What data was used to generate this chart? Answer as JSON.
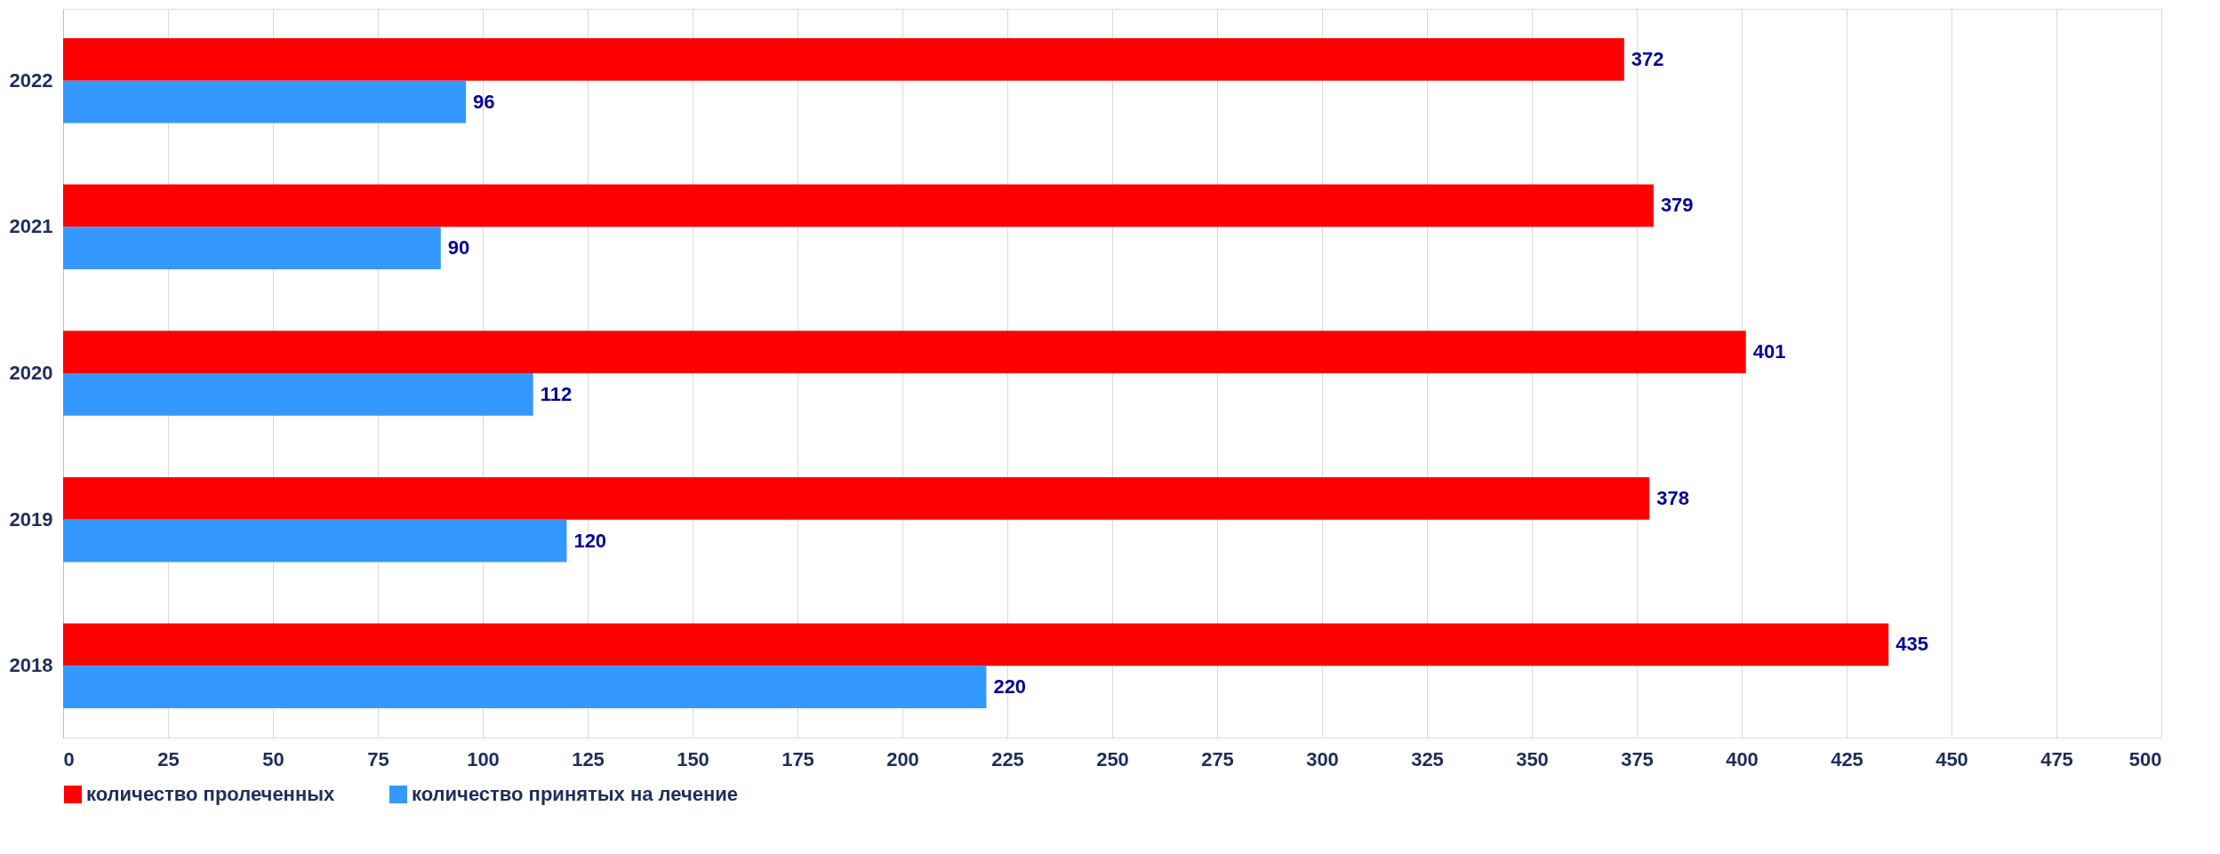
{
  "chart_data": {
    "type": "bar",
    "orientation": "horizontal",
    "categories": [
      "2022",
      "2021",
      "2020",
      "2019",
      "2018"
    ],
    "series": [
      {
        "name": "количество пролеченных",
        "color": "#ff0000",
        "values": [
          372,
          379,
          401,
          378,
          435
        ]
      },
      {
        "name": "количество принятых на лечение",
        "color": "#3399ff",
        "values": [
          96,
          90,
          112,
          120,
          220
        ]
      }
    ],
    "xlim": [
      0,
      500
    ],
    "xticks": [
      0,
      25,
      50,
      75,
      100,
      125,
      150,
      175,
      200,
      225,
      250,
      275,
      300,
      325,
      350,
      375,
      400,
      425,
      450,
      475,
      500
    ],
    "grid": "x",
    "legend": "bottom",
    "data_labels": true
  }
}
